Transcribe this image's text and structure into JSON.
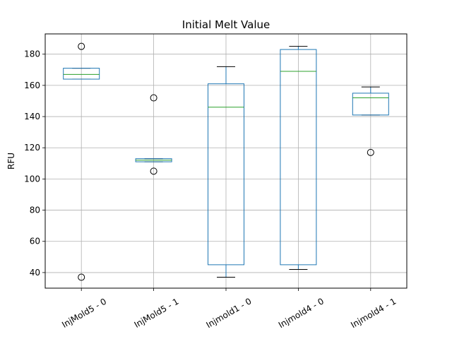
{
  "chart_data": {
    "type": "box",
    "title": "Initial Melt Value",
    "xlabel": "",
    "ylabel": "RFU",
    "ylim": [
      30,
      193
    ],
    "yticks": [
      40,
      60,
      80,
      100,
      120,
      140,
      160,
      180
    ],
    "grid": true,
    "categories": [
      "InjMold5 - 0",
      "InjMold5 - 1",
      "Injmold1 - 0",
      "Injmold4 - 0",
      "Injmold4 - 1"
    ],
    "boxes": [
      {
        "whisker_low": 164,
        "q1": 164,
        "median": 167,
        "q3": 171,
        "whisker_high": 171,
        "outliers": [
          185,
          37
        ]
      },
      {
        "whisker_low": 111,
        "q1": 111,
        "median": 112,
        "q3": 113,
        "whisker_high": 113,
        "outliers": [
          152,
          105
        ]
      },
      {
        "whisker_low": 37,
        "q1": 45,
        "median": 146,
        "q3": 161,
        "whisker_high": 172,
        "outliers": []
      },
      {
        "whisker_low": 42,
        "q1": 45,
        "median": 169,
        "q3": 183,
        "whisker_high": 185,
        "outliers": []
      },
      {
        "whisker_low": 141,
        "q1": 141,
        "median": 152,
        "q3": 155,
        "whisker_high": 159,
        "outliers": [
          117
        ]
      }
    ],
    "colors": {
      "box": "#1f77b4",
      "median": "#2ca02c",
      "whisker_cap": "#000000",
      "outlier": "#000000",
      "grid": "#b0b0b0"
    }
  }
}
